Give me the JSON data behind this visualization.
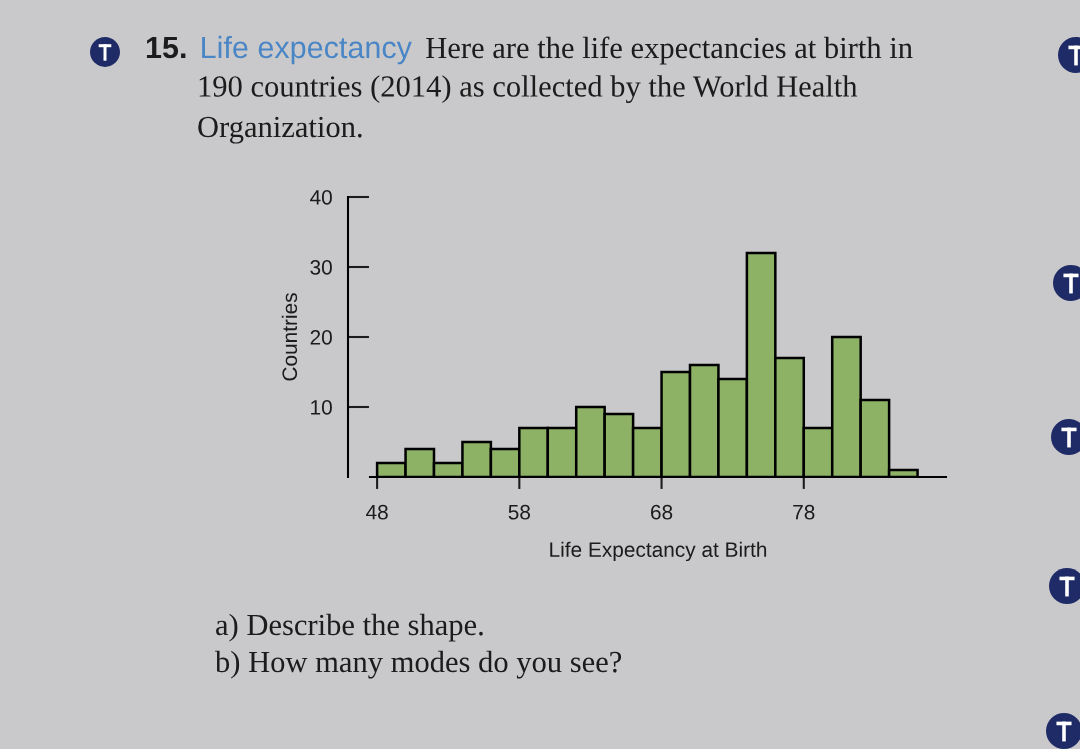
{
  "chart_data": {
    "type": "histogram",
    "title": "15. Life expectancy",
    "subtitle": "Here are the life expectancies at birth in",
    "xlabel": "Life Expectancy at Birth",
    "ylabel": "Countries",
    "annotations": [
      "190 countries (2014) as collected by the World Health\nOrganization.",
      "a) Describe the shape.",
      "b) How many modes do you see?"
    ],
    "bins": [
      48,
      50,
      52,
      54,
      56,
      58,
      60,
      62,
      64,
      66,
      68,
      70,
      72,
      74,
      76,
      78,
      80,
      82,
      84,
      86
    ],
    "values": [
      2,
      4,
      2,
      5,
      4,
      7,
      7,
      10,
      9,
      7,
      15,
      16,
      14,
      32,
      17,
      7,
      20,
      11,
      1
    ],
    "color": "#8db266",
    "xlim": [
      47.5,
      88
    ],
    "ylim": [
      0,
      40
    ],
    "xticks": [
      48,
      58,
      68,
      78
    ],
    "yticks": [
      10,
      20,
      30,
      40
    ]
  }
}
